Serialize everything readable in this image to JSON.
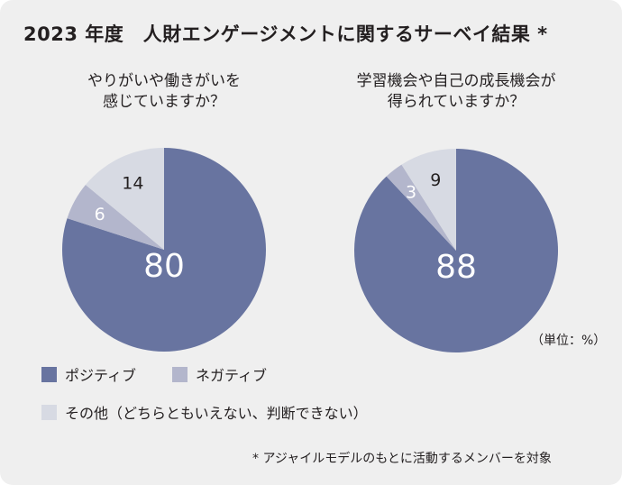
{
  "title": "2023 年度　人財エンゲージメントに関するサーベイ結果 *",
  "unit_label": "（単位：%）",
  "footnote": "* アジャイルモデルのもとに活動するメンバーを対象",
  "colors": {
    "positive": "#6874a0",
    "negative": "#b3b6cc",
    "other": "#d7dae3",
    "background": "#efefef"
  },
  "legend": [
    {
      "label": "ポジティブ",
      "color": "#6874a0"
    },
    {
      "label": "ネガティブ",
      "color": "#b3b6cc"
    },
    {
      "label": "その他（どちらともいえない、判断できない）",
      "color": "#d7dae3"
    }
  ],
  "chart_data": [
    {
      "type": "pie",
      "title_lines": [
        "やりがいや働きがいを",
        "感じていますか？"
      ],
      "slices": [
        {
          "label": "ポジティブ",
          "value": 80
        },
        {
          "label": "ネガティブ",
          "value": 6
        },
        {
          "label": "その他（どちらともいえない、判断できない）",
          "value": 14
        }
      ]
    },
    {
      "type": "pie",
      "title_lines": [
        "学習機会や自己の成長機会が",
        "得られていますか？"
      ],
      "slices": [
        {
          "label": "ポジティブ",
          "value": 88
        },
        {
          "label": "ネガティブ",
          "value": 3
        },
        {
          "label": "その他（どちらともいえない、判断できない）",
          "value": 9
        }
      ]
    }
  ]
}
